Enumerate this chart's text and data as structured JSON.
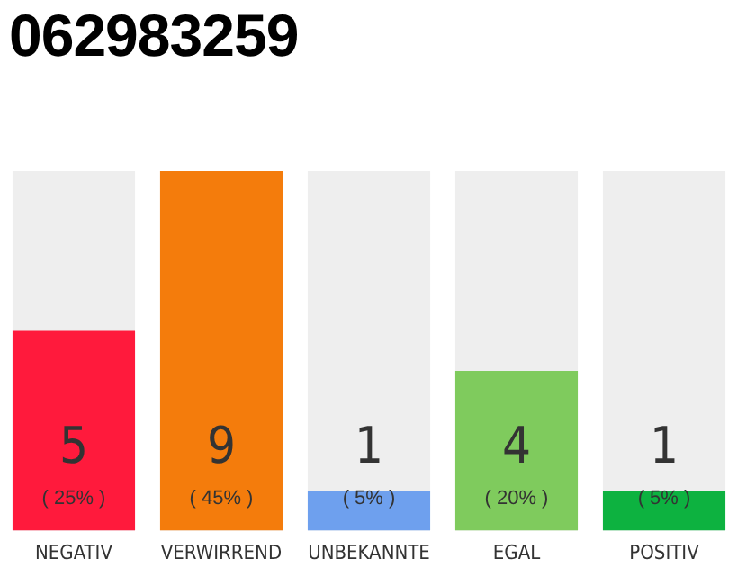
{
  "chart_data": {
    "type": "bar",
    "title": "062983259",
    "categories": [
      "NEGATIV",
      "VERWIRREND",
      "UNBEKANNTE",
      "EGAL",
      "POSITIV"
    ],
    "values": [
      5,
      9,
      1,
      4,
      1
    ],
    "colors": [
      "#ff1a3c",
      "#f47c0c",
      "#6ea0ee",
      "#7fcb5d",
      "#0db240"
    ],
    "data_labels": true,
    "annotations": [
      "( 25% )",
      "( 45% )",
      "( 5% )",
      "( 20% )",
      "( 5% )"
    ],
    "grid": false,
    "legend": false,
    "tick_labels": "x"
  }
}
